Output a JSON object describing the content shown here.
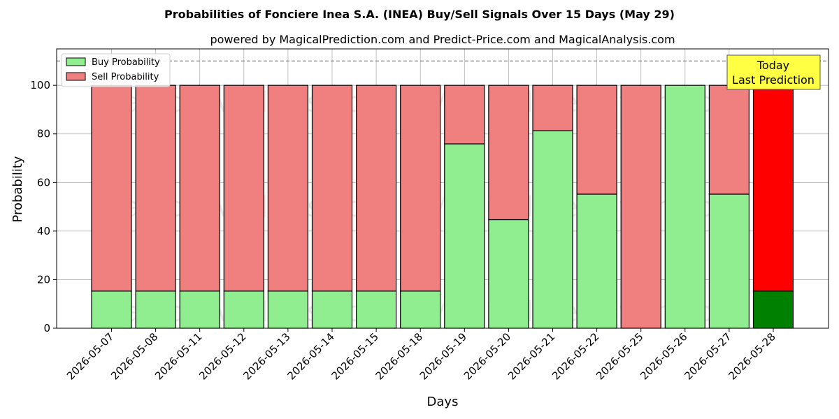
{
  "chart_data": {
    "type": "bar",
    "stacked": true,
    "title": "Probabilities of Fonciere Inea S.A. (INEA) Buy/Sell Signals Over 15 Days (May 29)",
    "subtitle": "powered by MagicalPrediction.com and Predict-Price.com and MagicalAnalysis.com",
    "xlabel": "Days",
    "ylabel": "Probability",
    "ylim": [
      0,
      115
    ],
    "yticks": [
      0,
      20,
      40,
      60,
      80,
      100
    ],
    "grid": true,
    "legend_position": "top-left",
    "categories": [
      "2026-05-07",
      "2026-05-08",
      "2026-05-11",
      "2026-05-12",
      "2026-05-13",
      "2026-05-14",
      "2026-05-15",
      "2026-05-18",
      "2026-05-19",
      "2026-05-20",
      "2026-05-21",
      "2026-05-22",
      "2026-05-25",
      "2026-05-26",
      "2026-05-27",
      "2026-05-28"
    ],
    "series": [
      {
        "name": "Buy Probability",
        "color": "#90ee90",
        "highlight_color": "#008000",
        "values": [
          15.3,
          15.3,
          15.3,
          15.3,
          15.3,
          15.3,
          15.3,
          15.3,
          75.9,
          44.7,
          81.3,
          55.2,
          0,
          100,
          55.2,
          15.3
        ]
      },
      {
        "name": "Sell Probability",
        "color": "#f08080",
        "highlight_color": "#ff0000",
        "values": [
          84.7,
          84.7,
          84.7,
          84.7,
          84.7,
          84.7,
          84.7,
          84.7,
          24.1,
          55.3,
          18.7,
          44.8,
          100,
          0,
          44.8,
          84.7
        ]
      }
    ],
    "highlight_index": 15,
    "reference_line": {
      "y": 110,
      "style": "dashed",
      "color": "#808080"
    },
    "annotation": {
      "lines": [
        "Today",
        "Last Prediction"
      ],
      "background": "#ffff44"
    },
    "watermarks": [
      "MagicalAnalysis.com",
      "MagicalPrediction.com"
    ]
  }
}
